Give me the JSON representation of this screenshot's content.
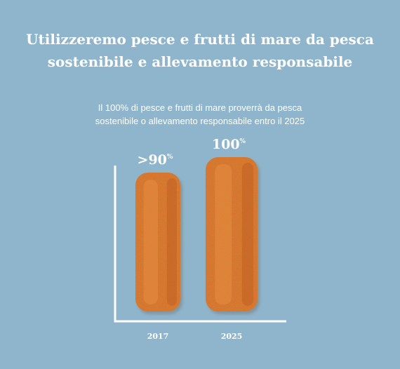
{
  "title": {
    "line1": "Utilizzeremo pesce e frutti di mare da pesca",
    "line2": "sostenibile e allevamento responsabile"
  },
  "subtitle": {
    "line1": "Il 100% di pesce e frutti di mare proverrà da pesca",
    "line2": "sostenibile o allevamento responsabile entro il 2025"
  },
  "colors": {
    "background": "#8fb5cc",
    "text": "#ffffff",
    "bar_main": "#d9752e",
    "bar_dark": "#b5541c",
    "bar_light": "#ee9a4a"
  },
  "chart_data": {
    "type": "bar",
    "categories": [
      "2017",
      "2025"
    ],
    "values": [
      90,
      100
    ],
    "value_labels": [
      ">90",
      "100"
    ],
    "value_suffix": "%",
    "ylim": [
      0,
      100
    ],
    "grid": false,
    "bar_style": "fish-stick"
  }
}
